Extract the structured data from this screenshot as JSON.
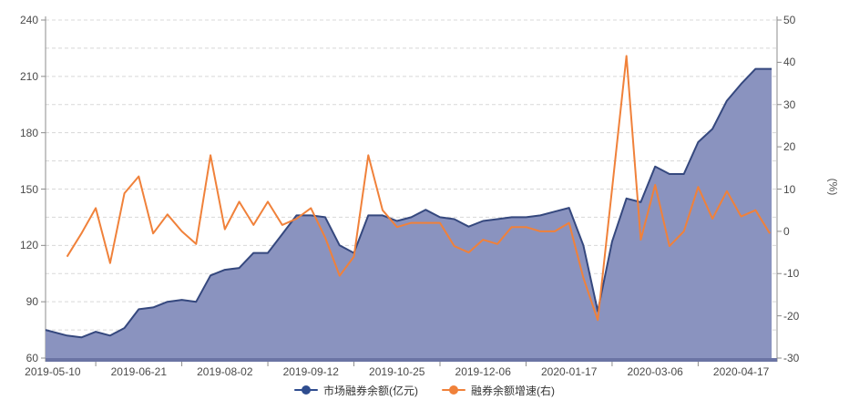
{
  "legend": {
    "items": [
      {
        "label": "市场融券余额(亿元)",
        "color": "#2f4d8f"
      },
      {
        "label": "融券余额增速(右)",
        "color": "#f0813a"
      }
    ]
  },
  "chart_data": {
    "type": "area+line combo, dual axis",
    "x_tick_labels": [
      "2019-05-10",
      "2019-06-21",
      "2019-08-02",
      "2019-09-12",
      "2019-10-25",
      "2019-12-06",
      "2020-01-17",
      "2020-03-06",
      "2020-04-17"
    ],
    "x_tick_indices": [
      0,
      6,
      12,
      18,
      24,
      30,
      36,
      42,
      48
    ],
    "n_points": 51,
    "left_axis": {
      "min": 60,
      "max": 240,
      "ticks": [
        240,
        210,
        180,
        150,
        120,
        90,
        60
      ]
    },
    "right_axis": {
      "min": -30,
      "max": 50,
      "ticks": [
        50,
        40,
        30,
        20,
        10,
        0,
        -10,
        -20,
        -30
      ],
      "unit": "(%)"
    },
    "grid": {
      "horizontal_dashed_step_left_units": 15,
      "color": "#d8d8d8"
    },
    "series": [
      {
        "name": "市场融券余额(亿元)",
        "type": "area",
        "axis": "left",
        "line_color": "#35487e",
        "fill_color": "#8a93bf",
        "values": [
          75,
          72,
          71,
          74,
          72,
          76,
          86,
          87,
          90,
          91,
          90,
          104,
          107,
          108,
          116,
          116,
          126,
          136,
          136,
          135,
          120,
          116,
          136,
          136,
          133,
          135,
          139,
          135,
          134,
          130,
          133,
          134,
          135,
          135,
          136,
          138,
          140,
          120,
          85,
          122,
          145,
          143,
          162,
          158,
          158,
          175,
          182,
          197,
          206,
          214,
          214
        ]
      },
      {
        "name": "融券余额增速(右)",
        "type": "line",
        "axis": "right",
        "line_color": "#f0813a",
        "values": [
          null,
          -6,
          -0.5,
          5.5,
          -7.5,
          9,
          13,
          -0.5,
          4,
          0,
          -3,
          18,
          0.5,
          7,
          1.5,
          7,
          1.5,
          3,
          5.5,
          -1.5,
          -10.5,
          -6,
          18,
          5,
          1,
          2,
          2,
          2,
          -3.5,
          -5,
          -2,
          -3,
          1,
          1,
          0,
          0,
          2,
          -11,
          -21,
          10,
          41.5,
          -2,
          11,
          -3.5,
          0,
          10.5,
          3,
          9.5,
          3.5,
          5,
          -0.5
        ]
      }
    ],
    "axis_colors": {
      "axis_line": "#8c8c8c",
      "x_axis_bar": "#6b74a4",
      "tick_text": "#4a4a4a"
    }
  }
}
